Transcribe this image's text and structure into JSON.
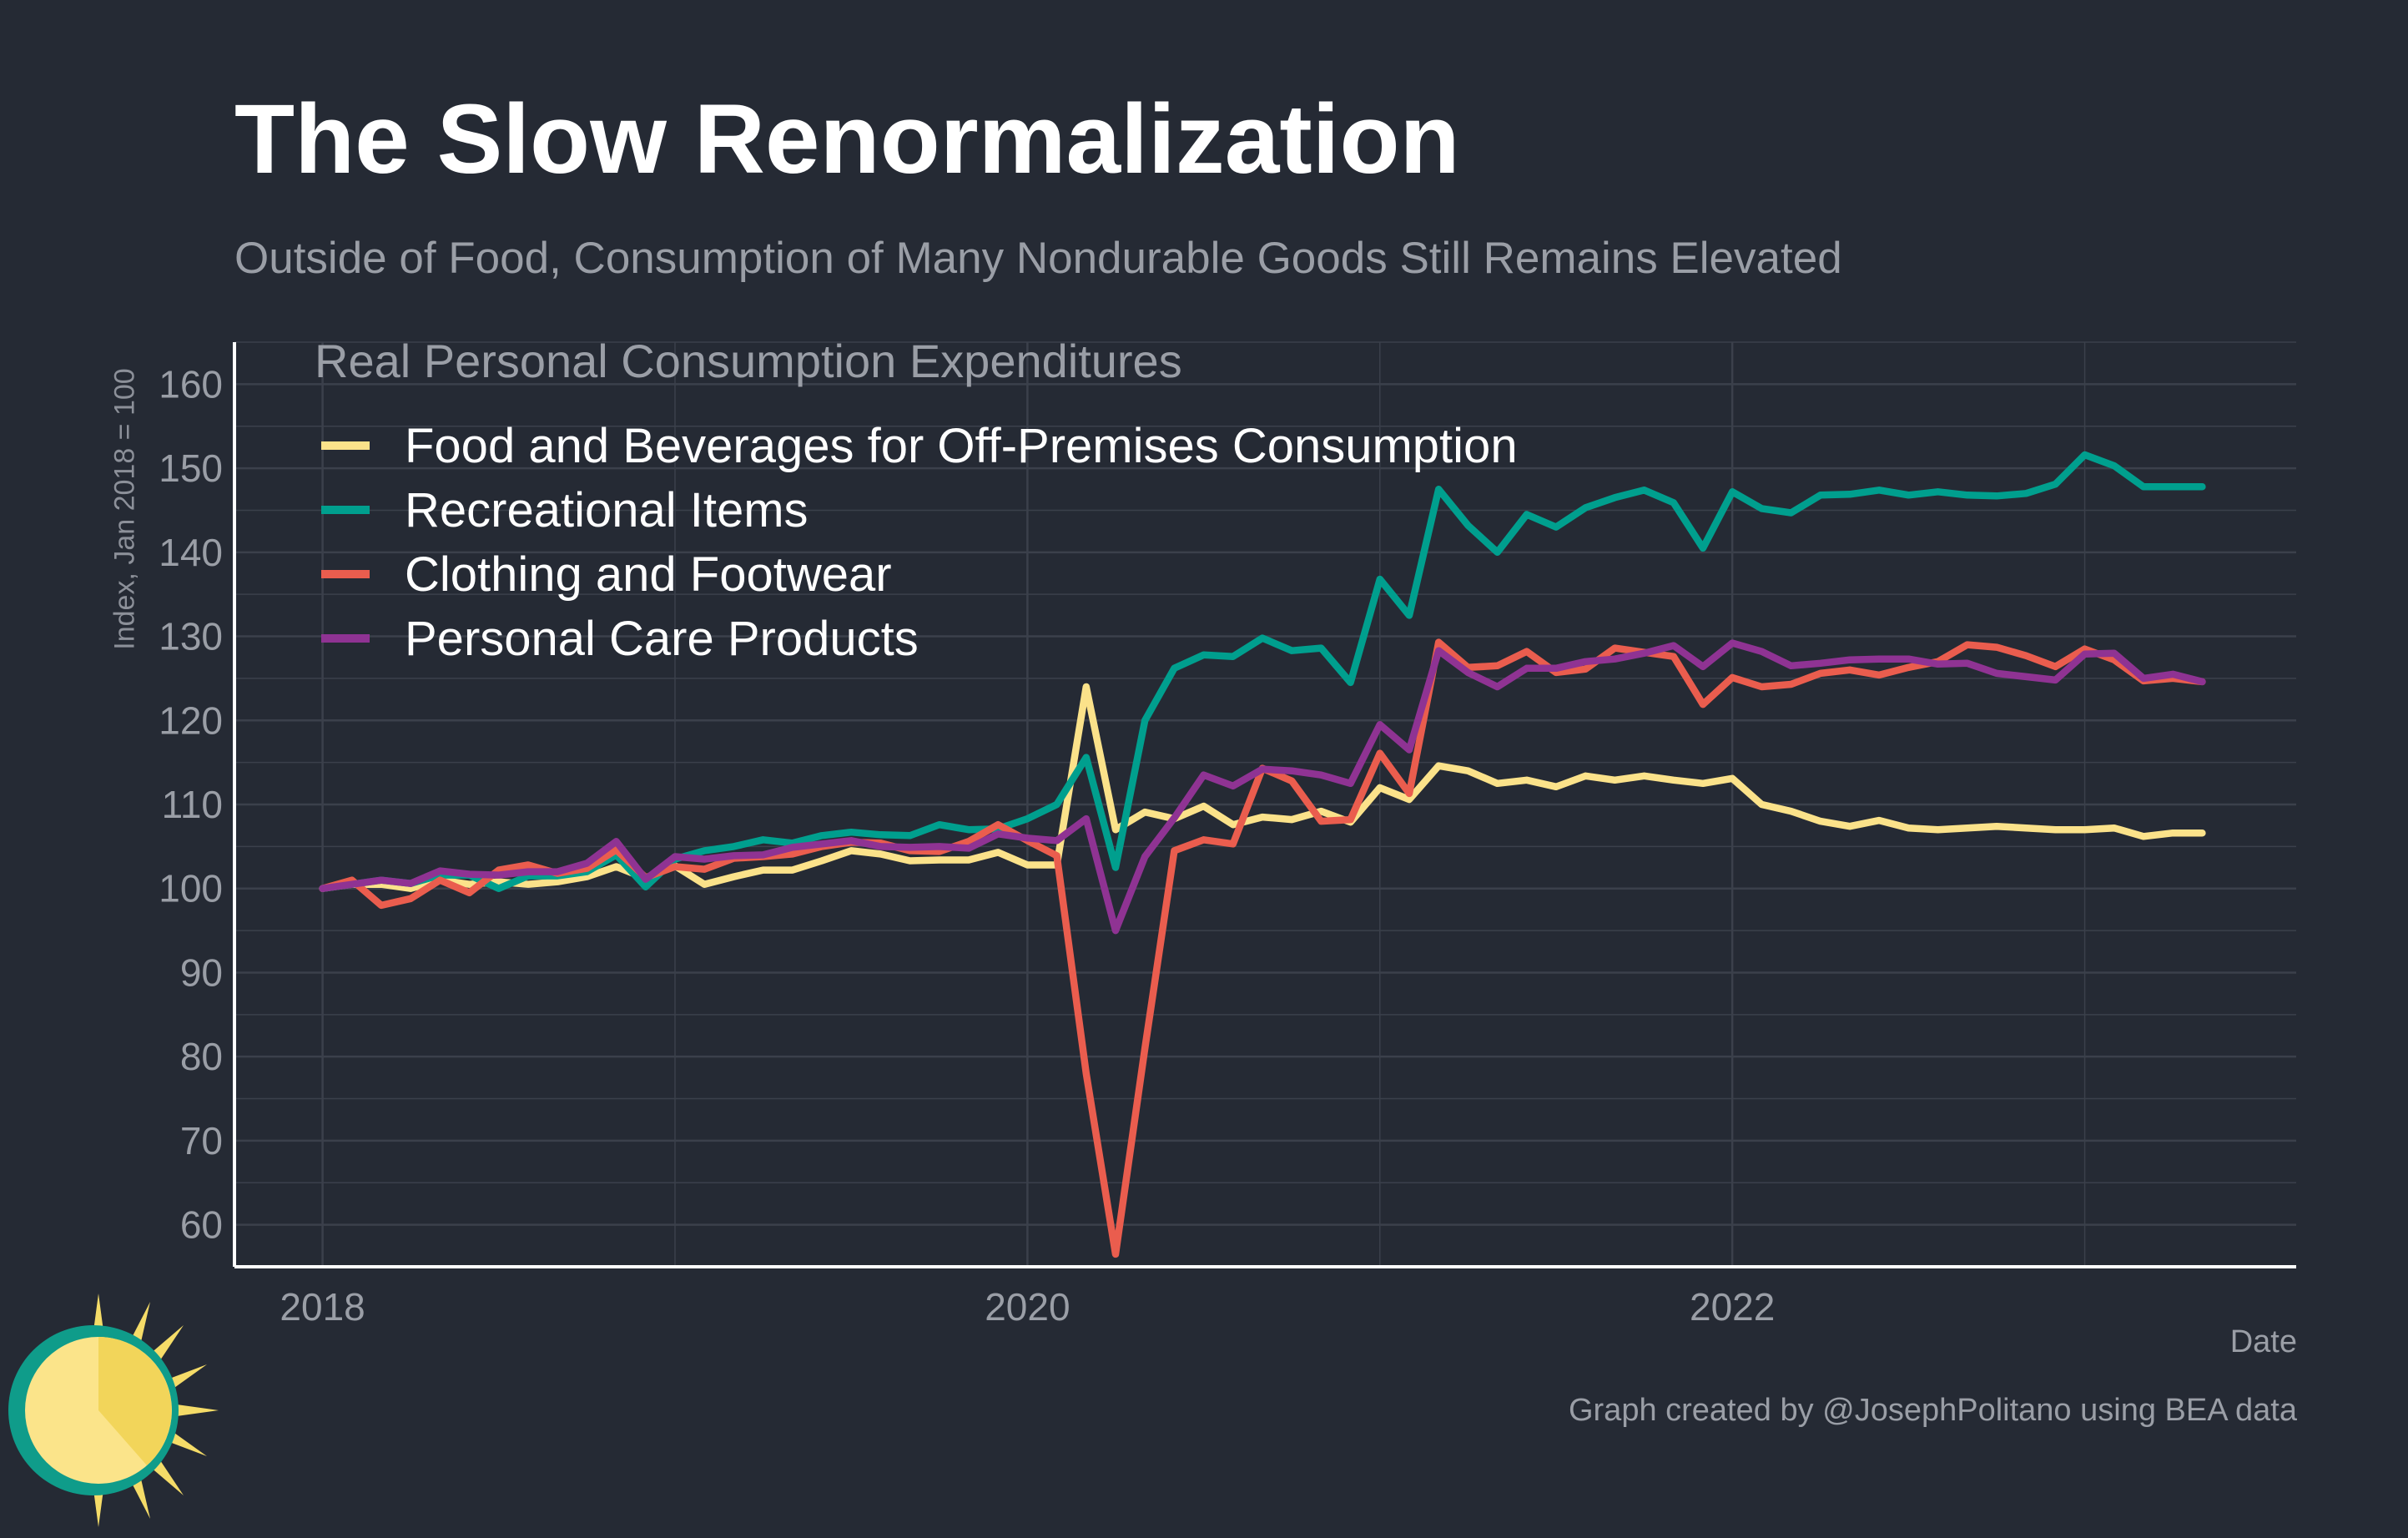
{
  "title": "The Slow Renormalization",
  "subtitle": "Outside of Food, Consumption of Many Nondurable Goods Still Remains Elevated",
  "caption": "Graph created by @JosephPolitano using BEA data",
  "logo_icon": "sun-logo-icon",
  "colors": {
    "background": "#252a34",
    "grid": "#3b404b",
    "food": "#fbe28a",
    "recreational": "#009f8e",
    "clothing": "#ea5d4e",
    "personal_care": "#8f3393"
  },
  "chart_data": {
    "type": "line",
    "title": "The Slow Renormalization",
    "legend_title": "Real Personal Consumption Expenditures",
    "legend_position": "top-left",
    "xlabel": "Date",
    "ylabel": "Index, Jan 2018 = 100",
    "xlim": [
      2017.75,
      2023.6
    ],
    "ylim": [
      55,
      165
    ],
    "yticks": [
      60,
      70,
      80,
      90,
      100,
      110,
      120,
      130,
      140,
      150,
      160
    ],
    "xticks": [
      2018,
      2020,
      2022
    ],
    "xtick_labels": [
      "2018",
      "2020",
      "2022"
    ],
    "grid": true,
    "x_start": 2018.0,
    "x_step": 0.0833333,
    "series": [
      {
        "name": "Food and Beverages for Off-Premises Consumption",
        "color": "#fbe28a",
        "values": [
          100,
          100.5,
          100.5,
          100,
          101,
          100.5,
          100.8,
          100.5,
          100.8,
          101.4,
          102.6,
          101.2,
          102.7,
          100.5,
          101.4,
          102.2,
          102.2,
          103.3,
          104.5,
          104.1,
          103.3,
          103.4,
          103.4,
          104.3,
          102.8,
          102.8,
          124,
          107,
          109.1,
          108.3,
          109.8,
          107.6,
          108.5,
          108.2,
          109.2,
          107.9,
          112,
          110.6,
          114.6,
          114,
          112.5,
          112.9,
          112.1,
          113.4,
          112.9,
          113.4,
          112.9,
          112.5,
          113.1,
          110,
          109.2,
          108,
          107.4,
          108.1,
          107.2,
          107,
          107.2,
          107.4,
          107.2,
          107,
          107,
          107.2,
          106.2,
          106.6,
          106.6
        ]
      },
      {
        "name": "Recreational Items",
        "color": "#009f8e",
        "values": [
          100,
          100.5,
          101,
          100.6,
          101.6,
          101.6,
          100,
          101.5,
          101.5,
          102,
          104,
          100.2,
          103.5,
          104.5,
          105,
          105.8,
          105.4,
          106.3,
          106.7,
          106.4,
          106.3,
          107.6,
          107,
          107.1,
          108.3,
          110,
          115.6,
          102.5,
          120,
          126.2,
          127.8,
          127.6,
          129.8,
          128.3,
          128.6,
          124.5,
          136.8,
          132.5,
          147.5,
          143.2,
          140,
          144.5,
          143,
          145.3,
          146.5,
          147.4,
          145.9,
          140.5,
          147.2,
          145.2,
          144.7,
          146.8,
          146.9,
          147.4,
          146.8,
          147.2,
          146.8,
          146.7,
          147,
          148.1,
          151.6,
          150.3,
          147.8,
          147.8,
          147.8
        ]
      },
      {
        "name": "Clothing and Footwear",
        "color": "#ea5d4e",
        "values": [
          100,
          101,
          98,
          98.8,
          101,
          99.5,
          102.2,
          102.8,
          101.8,
          102.4,
          104.6,
          101.3,
          102.6,
          102.3,
          103.6,
          103.8,
          104.1,
          105,
          105.5,
          105.4,
          104.5,
          104.4,
          105.6,
          107.6,
          105.7,
          103.9,
          78,
          56.5,
          81,
          104.5,
          105.8,
          105.3,
          114.3,
          112.8,
          108,
          108.2,
          116.1,
          111.3,
          129.3,
          126.3,
          126.5,
          128.2,
          125.7,
          126.1,
          128.6,
          128.1,
          127.6,
          121.9,
          125.1,
          124,
          124.3,
          125.6,
          126,
          125.4,
          126.3,
          127,
          129,
          128.7,
          127.7,
          126.4,
          128.5,
          127.2,
          124.7,
          125,
          124.6
        ]
      },
      {
        "name": "Personal Care Products",
        "color": "#8f3393",
        "values": [
          100,
          100.5,
          101,
          100.6,
          102.1,
          101.7,
          101.6,
          102,
          102,
          103,
          105.6,
          101.1,
          103.8,
          103.5,
          103.9,
          104,
          104.9,
          105.3,
          105.7,
          105,
          104.9,
          105,
          104.8,
          106.5,
          106,
          105.7,
          108.3,
          95,
          103.8,
          108.4,
          113.5,
          112.2,
          114.2,
          114,
          113.5,
          112.5,
          119.5,
          116.5,
          128.3,
          125.7,
          124,
          126.2,
          126.2,
          127,
          127.3,
          128,
          128.9,
          126.4,
          129.2,
          128.2,
          126.5,
          126.8,
          127.2,
          127.3,
          127.3,
          126.7,
          126.8,
          125.6,
          125.2,
          124.8,
          127.9,
          128,
          125,
          125.5,
          124.6
        ]
      }
    ]
  }
}
